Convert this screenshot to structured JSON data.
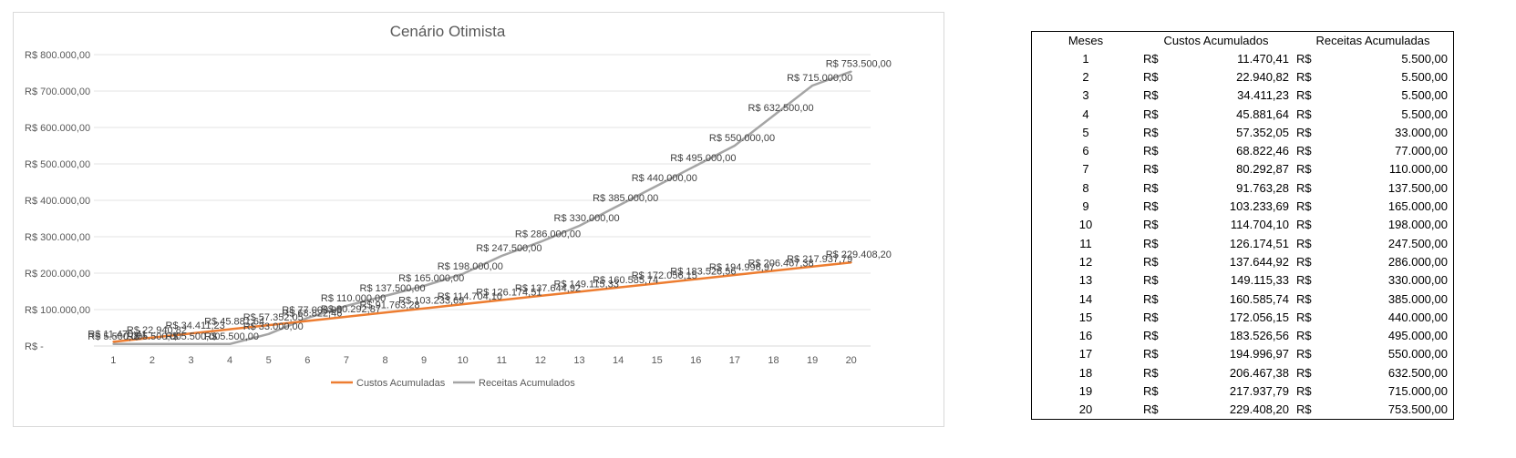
{
  "chart_data": {
    "type": "line",
    "title": "Cenário Otimista",
    "categories": [
      "1",
      "2",
      "3",
      "4",
      "5",
      "6",
      "7",
      "8",
      "9",
      "10",
      "11",
      "12",
      "13",
      "14",
      "15",
      "16",
      "17",
      "18",
      "19",
      "20"
    ],
    "y_ticks": [
      "R$ -",
      "R$ 100.000,00",
      "R$ 200.000,00",
      "R$ 300.000,00",
      "R$ 400.000,00",
      "R$ 500.000,00",
      "R$ 600.000,00",
      "R$ 700.000,00",
      "R$ 800.000,00"
    ],
    "ylim": [
      0,
      800000
    ],
    "grid": true,
    "legend_position": "bottom",
    "series": [
      {
        "name": "Custos Acumuladas",
        "color": "#ed7d31",
        "values": [
          11470.41,
          22940.82,
          34411.23,
          45881.64,
          57352.05,
          68822.46,
          80292.87,
          91763.28,
          103233.69,
          114704.1,
          126174.51,
          137644.92,
          149115.33,
          160585.74,
          172056.15,
          183526.56,
          194996.97,
          206467.38,
          217937.79,
          229408.2
        ],
        "labels": [
          "R$ 11.470,41",
          "R$ 22.940,82",
          "R$ 34.411,23",
          "R$ 45.881,64",
          "R$ 57.352,05",
          "R$ 68.822,46",
          "R$ 80.292,87",
          "R$ 91.763,28",
          "R$ 103.233,69",
          "R$ 114.704,10",
          "R$ 126.174,51",
          "R$ 137.644,92",
          "R$ 149.115,33",
          "R$ 160.585,74",
          "R$ 172.056,15",
          "R$ 183.526,56",
          "R$ 194.996,97",
          "R$ 206.467,38",
          "R$ 217.937,79",
          "R$ 229.408,20"
        ]
      },
      {
        "name": "Receitas Acumulados",
        "color": "#a5a5a5",
        "values": [
          5500,
          5500,
          5500,
          5500,
          33000,
          77000,
          110000,
          137500,
          165000,
          198000,
          247500,
          286000,
          330000,
          385000,
          440000,
          495000,
          550000,
          632500,
          715000,
          753500
        ],
        "labels": [
          "R$ 5.500,00",
          "R$ 5.500,00",
          "R$ 5.500,00",
          "R$ 5.500,00",
          "R$ 33.000,00",
          "R$ 77.000,00",
          "R$ 110.000,00",
          "R$ 137.500,00",
          "R$ 165.000,00",
          "R$ 198.000,00",
          "R$ 247.500,00",
          "R$ 286.000,00",
          "R$ 330.000,00",
          "R$ 385.000,00",
          "R$ 440.000,00",
          "R$ 495.000,00",
          "R$ 550.000,00",
          "R$ 632.500,00",
          "R$ 715.000,00",
          "R$ 753.500,00"
        ]
      }
    ]
  },
  "table": {
    "headers": [
      "Meses",
      "Custos Acumulados",
      "Receitas Acumuladas"
    ],
    "currency": "R$",
    "rows": [
      [
        "1",
        "11.470,41",
        "5.500,00"
      ],
      [
        "2",
        "22.940,82",
        "5.500,00"
      ],
      [
        "3",
        "34.411,23",
        "5.500,00"
      ],
      [
        "4",
        "45.881,64",
        "5.500,00"
      ],
      [
        "5",
        "57.352,05",
        "33.000,00"
      ],
      [
        "6",
        "68.822,46",
        "77.000,00"
      ],
      [
        "7",
        "80.292,87",
        "110.000,00"
      ],
      [
        "8",
        "91.763,28",
        "137.500,00"
      ],
      [
        "9",
        "103.233,69",
        "165.000,00"
      ],
      [
        "10",
        "114.704,10",
        "198.000,00"
      ],
      [
        "11",
        "126.174,51",
        "247.500,00"
      ],
      [
        "12",
        "137.644,92",
        "286.000,00"
      ],
      [
        "13",
        "149.115,33",
        "330.000,00"
      ],
      [
        "14",
        "160.585,74",
        "385.000,00"
      ],
      [
        "15",
        "172.056,15",
        "440.000,00"
      ],
      [
        "16",
        "183.526,56",
        "495.000,00"
      ],
      [
        "17",
        "194.996,97",
        "550.000,00"
      ],
      [
        "18",
        "206.467,38",
        "632.500,00"
      ],
      [
        "19",
        "217.937,79",
        "715.000,00"
      ],
      [
        "20",
        "229.408,20",
        "753.500,00"
      ]
    ]
  }
}
